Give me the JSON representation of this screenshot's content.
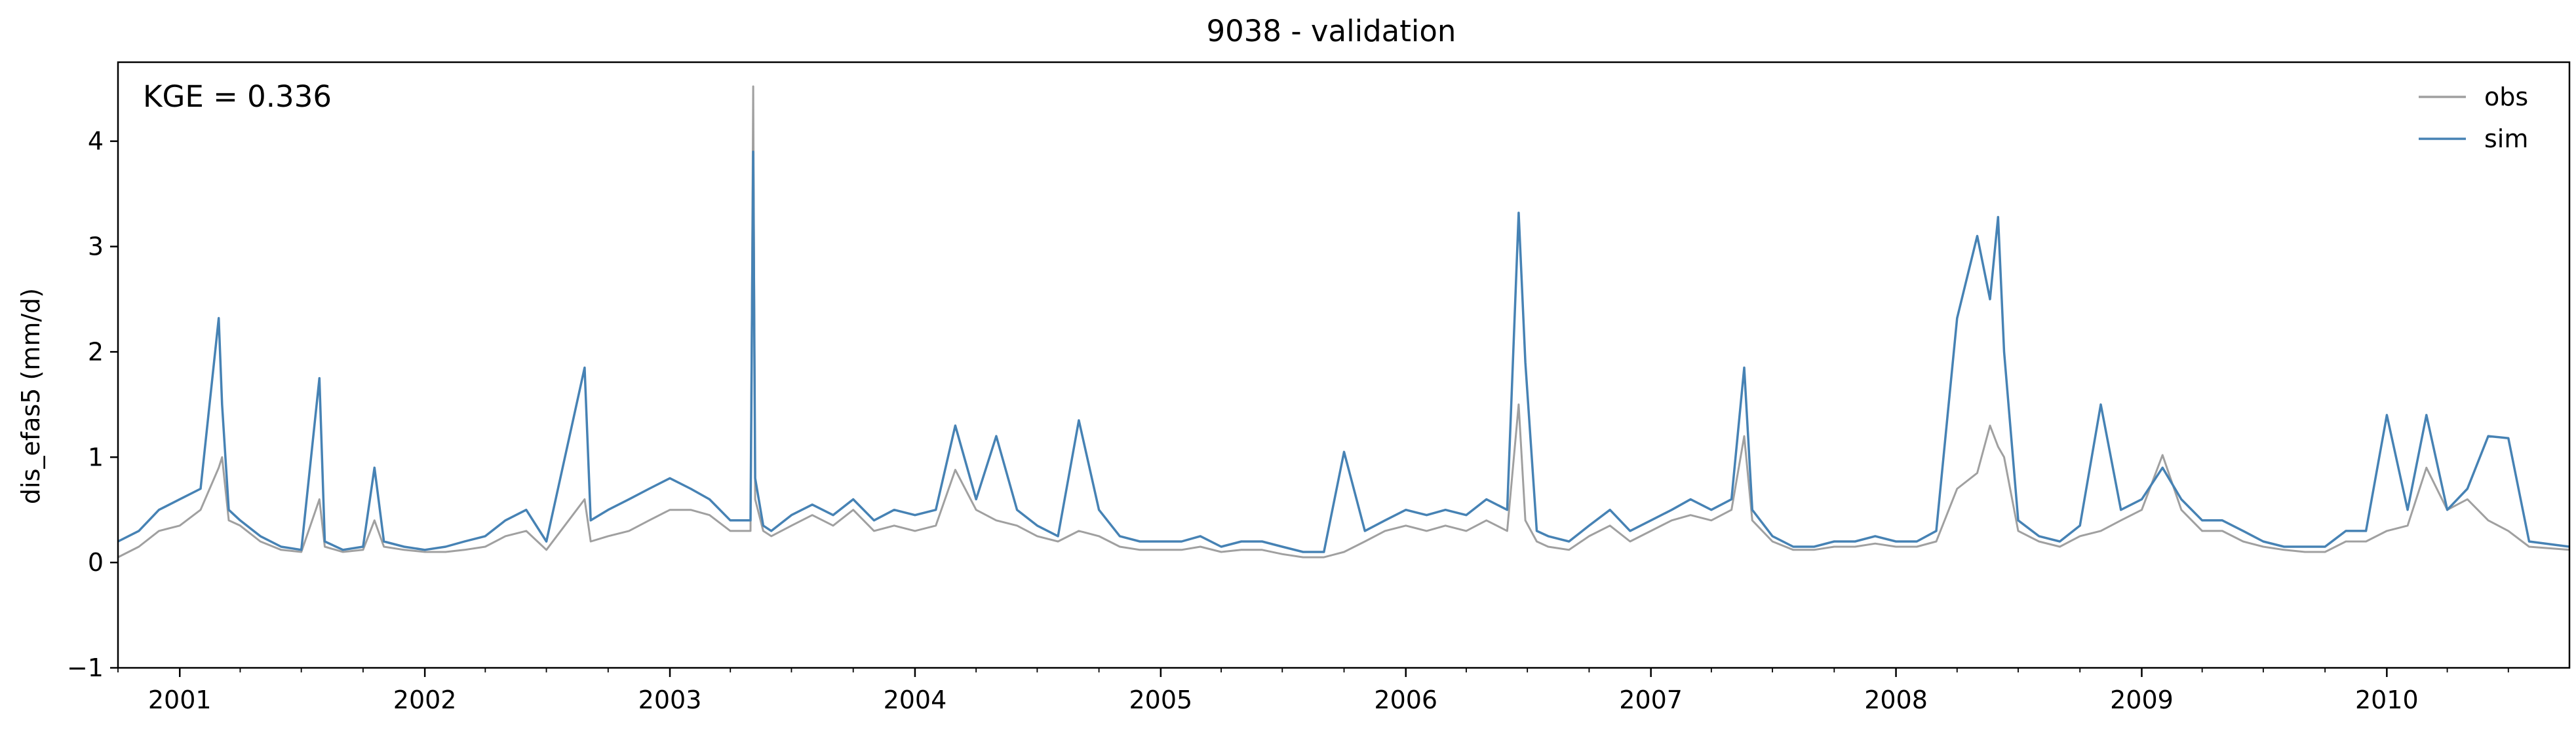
{
  "chart_data": {
    "type": "line",
    "title": "9038 - validation",
    "xlabel": "",
    "ylabel": "dis_efas5 (mm/d)",
    "ylim": [
      -1,
      4.75
    ],
    "xlim": [
      "2000-10-01",
      "2010-09-30"
    ],
    "y_ticks": [
      -1,
      0,
      1,
      2,
      3,
      4
    ],
    "x_ticks": [
      "2001",
      "2002",
      "2003",
      "2004",
      "2005",
      "2006",
      "2007",
      "2008",
      "2009",
      "2010"
    ],
    "grid": false,
    "legend_position": "top-right",
    "annotation": "KGE = 0.336",
    "series": [
      {
        "name": "obs",
        "color": "#a0a0a0",
        "x": [
          "2000-10-01",
          "2000-11-01",
          "2000-12-01",
          "2001-01-01",
          "2001-02-01",
          "2001-02-28",
          "2001-03-05",
          "2001-03-15",
          "2001-04-01",
          "2001-05-01",
          "2001-06-01",
          "2001-07-01",
          "2001-07-28",
          "2001-08-05",
          "2001-09-01",
          "2001-10-01",
          "2001-10-18",
          "2001-11-01",
          "2001-12-01",
          "2002-01-01",
          "2002-02-01",
          "2002-03-01",
          "2002-04-01",
          "2002-05-01",
          "2002-06-01",
          "2002-07-01",
          "2002-08-27",
          "2002-09-05",
          "2002-10-01",
          "2002-11-01",
          "2002-12-01",
          "2003-01-01",
          "2003-02-01",
          "2003-03-01",
          "2003-04-01",
          "2003-05-01",
          "2003-05-05",
          "2003-05-08",
          "2003-05-20",
          "2003-06-01",
          "2003-07-01",
          "2003-08-01",
          "2003-09-01",
          "2003-10-01",
          "2003-11-01",
          "2003-12-01",
          "2004-01-01",
          "2004-02-01",
          "2004-03-01",
          "2004-04-01",
          "2004-05-01",
          "2004-06-01",
          "2004-07-01",
          "2004-08-01",
          "2004-09-01",
          "2004-10-01",
          "2004-11-01",
          "2004-12-01",
          "2005-01-01",
          "2005-02-01",
          "2005-03-01",
          "2005-04-01",
          "2005-05-01",
          "2005-06-01",
          "2005-07-01",
          "2005-08-01",
          "2005-09-01",
          "2005-10-01",
          "2005-11-01",
          "2005-12-01",
          "2006-01-01",
          "2006-02-01",
          "2006-03-01",
          "2006-04-01",
          "2006-05-01",
          "2006-06-01",
          "2006-06-18",
          "2006-06-28",
          "2006-07-15",
          "2006-08-01",
          "2006-09-01",
          "2006-10-01",
          "2006-11-01",
          "2006-12-01",
          "2007-01-01",
          "2007-02-01",
          "2007-03-01",
          "2007-04-01",
          "2007-05-01",
          "2007-05-20",
          "2007-06-01",
          "2007-07-01",
          "2007-08-01",
          "2007-09-01",
          "2007-10-01",
          "2007-11-01",
          "2007-12-01",
          "2008-01-01",
          "2008-02-01",
          "2008-03-01",
          "2008-04-01",
          "2008-05-01",
          "2008-05-20",
          "2008-06-01",
          "2008-06-10",
          "2008-07-01",
          "2008-08-01",
          "2008-09-01",
          "2008-10-01",
          "2008-11-01",
          "2008-12-01",
          "2009-01-01",
          "2009-02-01",
          "2009-03-01",
          "2009-04-01",
          "2009-05-01",
          "2009-06-01",
          "2009-07-01",
          "2009-08-01",
          "2009-09-01",
          "2009-10-01",
          "2009-11-01",
          "2009-12-01",
          "2010-01-01",
          "2010-02-01",
          "2010-03-01",
          "2010-04-01",
          "2010-05-01",
          "2010-06-01",
          "2010-07-01",
          "2010-08-01",
          "2010-09-30"
        ],
        "y": [
          0.05,
          0.15,
          0.3,
          0.35,
          0.5,
          0.9,
          1.0,
          0.4,
          0.35,
          0.2,
          0.12,
          0.1,
          0.6,
          0.15,
          0.1,
          0.12,
          0.4,
          0.15,
          0.12,
          0.1,
          0.1,
          0.12,
          0.15,
          0.25,
          0.3,
          0.12,
          0.6,
          0.2,
          0.25,
          0.3,
          0.4,
          0.5,
          0.5,
          0.45,
          0.3,
          0.3,
          4.52,
          0.6,
          0.3,
          0.25,
          0.35,
          0.45,
          0.35,
          0.5,
          0.3,
          0.35,
          0.3,
          0.35,
          0.88,
          0.5,
          0.4,
          0.35,
          0.25,
          0.2,
          0.3,
          0.25,
          0.15,
          0.12,
          0.12,
          0.12,
          0.15,
          0.1,
          0.12,
          0.12,
          0.08,
          0.05,
          0.05,
          0.1,
          0.2,
          0.3,
          0.35,
          0.3,
          0.35,
          0.3,
          0.4,
          0.3,
          1.5,
          0.4,
          0.2,
          0.15,
          0.12,
          0.25,
          0.35,
          0.2,
          0.3,
          0.4,
          0.45,
          0.4,
          0.5,
          1.2,
          0.4,
          0.2,
          0.12,
          0.12,
          0.15,
          0.15,
          0.18,
          0.15,
          0.15,
          0.2,
          0.7,
          0.85,
          1.3,
          1.1,
          1.0,
          0.3,
          0.2,
          0.15,
          0.25,
          0.3,
          0.4,
          0.5,
          1.02,
          0.5,
          0.3,
          0.3,
          0.2,
          0.15,
          0.12,
          0.1,
          0.1,
          0.2,
          0.2,
          0.3,
          0.35,
          0.9,
          0.5,
          0.6,
          0.4,
          0.3,
          0.15,
          0.12
        ]
      },
      {
        "name": "sim",
        "color": "#4682b4",
        "x": [
          "2000-10-01",
          "2000-11-01",
          "2000-12-01",
          "2001-01-01",
          "2001-02-01",
          "2001-02-28",
          "2001-03-05",
          "2001-03-15",
          "2001-04-01",
          "2001-05-01",
          "2001-06-01",
          "2001-07-01",
          "2001-07-28",
          "2001-08-05",
          "2001-09-01",
          "2001-10-01",
          "2001-10-18",
          "2001-11-01",
          "2001-12-01",
          "2002-01-01",
          "2002-02-01",
          "2002-03-01",
          "2002-04-01",
          "2002-05-01",
          "2002-06-01",
          "2002-07-01",
          "2002-08-27",
          "2002-09-05",
          "2002-10-01",
          "2002-11-01",
          "2002-12-01",
          "2003-01-01",
          "2003-02-01",
          "2003-03-01",
          "2003-04-01",
          "2003-05-01",
          "2003-05-05",
          "2003-05-08",
          "2003-05-20",
          "2003-06-01",
          "2003-07-01",
          "2003-08-01",
          "2003-09-01",
          "2003-10-01",
          "2003-11-01",
          "2003-12-01",
          "2004-01-01",
          "2004-02-01",
          "2004-03-01",
          "2004-04-01",
          "2004-05-01",
          "2004-06-01",
          "2004-07-01",
          "2004-08-01",
          "2004-09-01",
          "2004-10-01",
          "2004-11-01",
          "2004-12-01",
          "2005-01-01",
          "2005-02-01",
          "2005-03-01",
          "2005-04-01",
          "2005-05-01",
          "2005-06-01",
          "2005-07-01",
          "2005-08-01",
          "2005-09-01",
          "2005-10-01",
          "2005-11-01",
          "2005-12-01",
          "2006-01-01",
          "2006-02-01",
          "2006-03-01",
          "2006-04-01",
          "2006-05-01",
          "2006-06-01",
          "2006-06-18",
          "2006-06-28",
          "2006-07-15",
          "2006-08-01",
          "2006-09-01",
          "2006-10-01",
          "2006-11-01",
          "2006-12-01",
          "2007-01-01",
          "2007-02-01",
          "2007-03-01",
          "2007-04-01",
          "2007-05-01",
          "2007-05-20",
          "2007-06-01",
          "2007-07-01",
          "2007-08-01",
          "2007-09-01",
          "2007-10-01",
          "2007-11-01",
          "2007-12-01",
          "2008-01-01",
          "2008-02-01",
          "2008-03-01",
          "2008-04-01",
          "2008-05-01",
          "2008-05-20",
          "2008-06-01",
          "2008-06-10",
          "2008-07-01",
          "2008-08-01",
          "2008-09-01",
          "2008-10-01",
          "2008-11-01",
          "2008-12-01",
          "2009-01-01",
          "2009-02-01",
          "2009-03-01",
          "2009-04-01",
          "2009-05-01",
          "2009-06-01",
          "2009-07-01",
          "2009-08-01",
          "2009-09-01",
          "2009-10-01",
          "2009-11-01",
          "2009-12-01",
          "2010-01-01",
          "2010-02-01",
          "2010-03-01",
          "2010-04-01",
          "2010-05-01",
          "2010-06-01",
          "2010-07-01",
          "2010-08-01",
          "2010-09-30"
        ],
        "y": [
          0.2,
          0.3,
          0.5,
          0.6,
          0.7,
          2.32,
          1.5,
          0.5,
          0.4,
          0.25,
          0.15,
          0.12,
          1.75,
          0.2,
          0.12,
          0.15,
          0.9,
          0.2,
          0.15,
          0.12,
          0.15,
          0.2,
          0.25,
          0.4,
          0.5,
          0.2,
          1.85,
          0.4,
          0.5,
          0.6,
          0.7,
          0.8,
          0.7,
          0.6,
          0.4,
          0.4,
          3.9,
          0.8,
          0.35,
          0.3,
          0.45,
          0.55,
          0.45,
          0.6,
          0.4,
          0.5,
          0.45,
          0.5,
          1.3,
          0.6,
          1.2,
          0.5,
          0.35,
          0.25,
          1.35,
          0.5,
          0.25,
          0.2,
          0.2,
          0.2,
          0.25,
          0.15,
          0.2,
          0.2,
          0.15,
          0.1,
          0.1,
          1.05,
          0.3,
          0.4,
          0.5,
          0.45,
          0.5,
          0.45,
          0.6,
          0.5,
          3.32,
          1.9,
          0.3,
          0.25,
          0.2,
          0.35,
          0.5,
          0.3,
          0.4,
          0.5,
          0.6,
          0.5,
          0.6,
          1.85,
          0.5,
          0.25,
          0.15,
          0.15,
          0.2,
          0.2,
          0.25,
          0.2,
          0.2,
          0.3,
          2.32,
          3.1,
          2.5,
          3.28,
          2.0,
          0.4,
          0.25,
          0.2,
          0.35,
          1.5,
          0.5,
          0.6,
          0.9,
          0.6,
          0.4,
          0.4,
          0.3,
          0.2,
          0.15,
          0.15,
          0.15,
          0.3,
          0.3,
          1.4,
          0.5,
          1.4,
          0.5,
          0.7,
          1.2,
          1.18,
          0.2,
          0.15
        ]
      }
    ]
  }
}
